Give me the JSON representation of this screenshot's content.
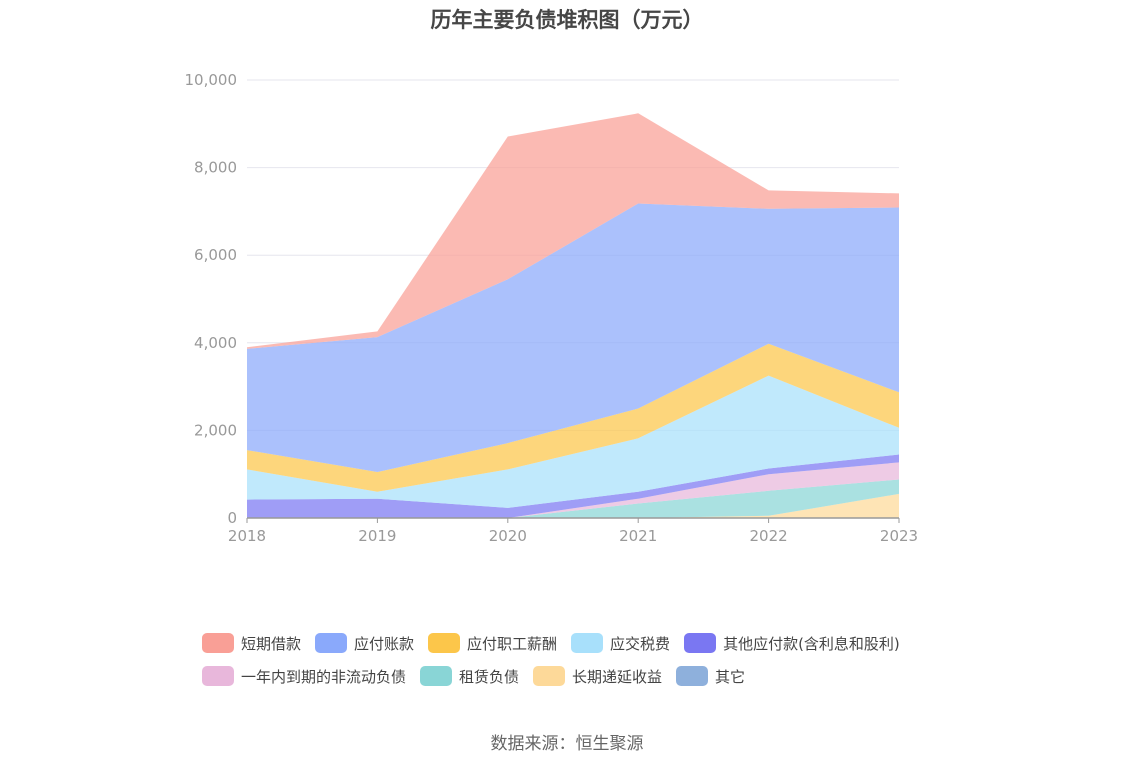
{
  "title": "历年主要负债堆积图（万元）",
  "source_text": "数据来源：恒生聚源",
  "chart_data": {
    "type": "area",
    "stacked": true,
    "categories": [
      "2018",
      "2019",
      "2020",
      "2021",
      "2022",
      "2023"
    ],
    "ylim": [
      0,
      10000
    ],
    "yticks": [
      0,
      2000,
      4000,
      6000,
      8000,
      10000
    ],
    "ytick_labels": [
      "0",
      "2,000",
      "4,000",
      "6,000",
      "8,000",
      "10,000"
    ],
    "grid": true,
    "legend_position": "bottom",
    "series": [
      {
        "name": "其它",
        "color": "#8eb0dc",
        "values": [
          0,
          0,
          0,
          0,
          0,
          0
        ]
      },
      {
        "name": "长期递延收益",
        "color": "#fdd999",
        "values": [
          0,
          0,
          0,
          0,
          50,
          550
        ]
      },
      {
        "name": "租赁负债",
        "color": "#89d5d6",
        "values": [
          0,
          0,
          0,
          330,
          570,
          330
        ]
      },
      {
        "name": "一年内到期的非流动负债",
        "color": "#e8b7db",
        "values": [
          0,
          0,
          0,
          110,
          380,
          390
        ]
      },
      {
        "name": "其他应付款(含利息和股利)",
        "color": "#7a77f2",
        "values": [
          420,
          440,
          230,
          160,
          130,
          180
        ]
      },
      {
        "name": "应交税费",
        "color": "#a8e0fb",
        "values": [
          690,
          160,
          880,
          1220,
          2120,
          610
        ]
      },
      {
        "name": "应付职工薪酬",
        "color": "#fcc64a",
        "values": [
          440,
          450,
          600,
          680,
          730,
          810
        ]
      },
      {
        "name": "应付账款",
        "color": "#8aa9fb",
        "values": [
          2310,
          3080,
          3740,
          4680,
          3080,
          4220
        ]
      },
      {
        "name": "短期借款",
        "color": "#f99f96",
        "values": [
          40,
          130,
          3260,
          2060,
          420,
          320
        ]
      }
    ]
  },
  "legend_rows": [
    [
      {
        "name": "短期借款",
        "color": "#f99f96"
      },
      {
        "name": "应付账款",
        "color": "#8aa9fb"
      },
      {
        "name": "应付职工薪酬",
        "color": "#fcc64a"
      },
      {
        "name": "应交税费",
        "color": "#a8e0fb"
      },
      {
        "name": "其他应付款(含利息和股利)",
        "color": "#7a77f2"
      }
    ],
    [
      {
        "name": "一年内到期的非流动负债",
        "color": "#e8b7db"
      },
      {
        "name": "租赁负债",
        "color": "#89d5d6"
      },
      {
        "name": "长期递延收益",
        "color": "#fdd999"
      },
      {
        "name": "其它",
        "color": "#8eb0dc"
      }
    ]
  ]
}
